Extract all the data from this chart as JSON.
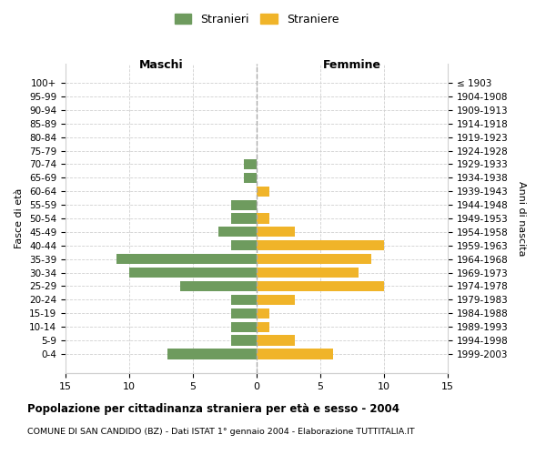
{
  "age_groups": [
    "100+",
    "95-99",
    "90-94",
    "85-89",
    "80-84",
    "75-79",
    "70-74",
    "65-69",
    "60-64",
    "55-59",
    "50-54",
    "45-49",
    "40-44",
    "35-39",
    "30-34",
    "25-29",
    "20-24",
    "15-19",
    "10-14",
    "5-9",
    "0-4"
  ],
  "birth_years": [
    "≤ 1903",
    "1904-1908",
    "1909-1913",
    "1914-1918",
    "1919-1923",
    "1924-1928",
    "1929-1933",
    "1934-1938",
    "1939-1943",
    "1944-1948",
    "1949-1953",
    "1954-1958",
    "1959-1963",
    "1964-1968",
    "1969-1973",
    "1974-1978",
    "1979-1983",
    "1984-1988",
    "1989-1993",
    "1994-1998",
    "1999-2003"
  ],
  "maschi": [
    0,
    0,
    0,
    0,
    0,
    0,
    1,
    1,
    0,
    2,
    2,
    3,
    2,
    11,
    10,
    6,
    2,
    2,
    2,
    2,
    7
  ],
  "femmine": [
    0,
    0,
    0,
    0,
    0,
    0,
    0,
    0,
    1,
    0,
    1,
    3,
    10,
    9,
    8,
    10,
    3,
    1,
    1,
    3,
    6
  ],
  "maschi_color": "#6e9b5e",
  "femmine_color": "#f0b429",
  "title": "Popolazione per cittadinanza straniera per età e sesso - 2004",
  "subtitle": "COMUNE DI SAN CANDIDO (BZ) - Dati ISTAT 1° gennaio 2004 - Elaborazione TUTTITALIA.IT",
  "xlabel_left": "Maschi",
  "xlabel_right": "Femmine",
  "ylabel_left": "Fasce di età",
  "ylabel_right": "Anni di nascita",
  "legend_stranieri": "Stranieri",
  "legend_straniere": "Straniere",
  "xlim": 15,
  "background_color": "#ffffff",
  "grid_color": "#d0d0d0"
}
